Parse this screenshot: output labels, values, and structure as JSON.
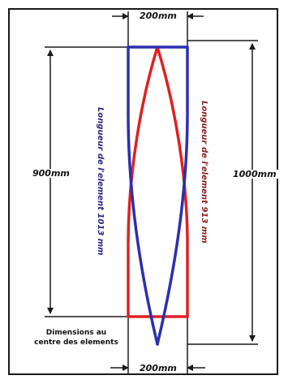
{
  "labels": {
    "top_width": "200mm",
    "bottom_width": "200mm",
    "left_height": "900mm",
    "right_height": "1000mm",
    "blue_element_length": "Longueur de l'element 1013 mm",
    "red_element_length": "Longueur de l'element 913 mm",
    "center_note_line1": "Dimensions au",
    "center_note_line2": "centre des elements"
  },
  "colors": {
    "blue_element": "#2b2fb0",
    "red_element": "#e02020",
    "dimension_lines": "#1a1a1a",
    "frame": "#1a1a1a"
  }
}
